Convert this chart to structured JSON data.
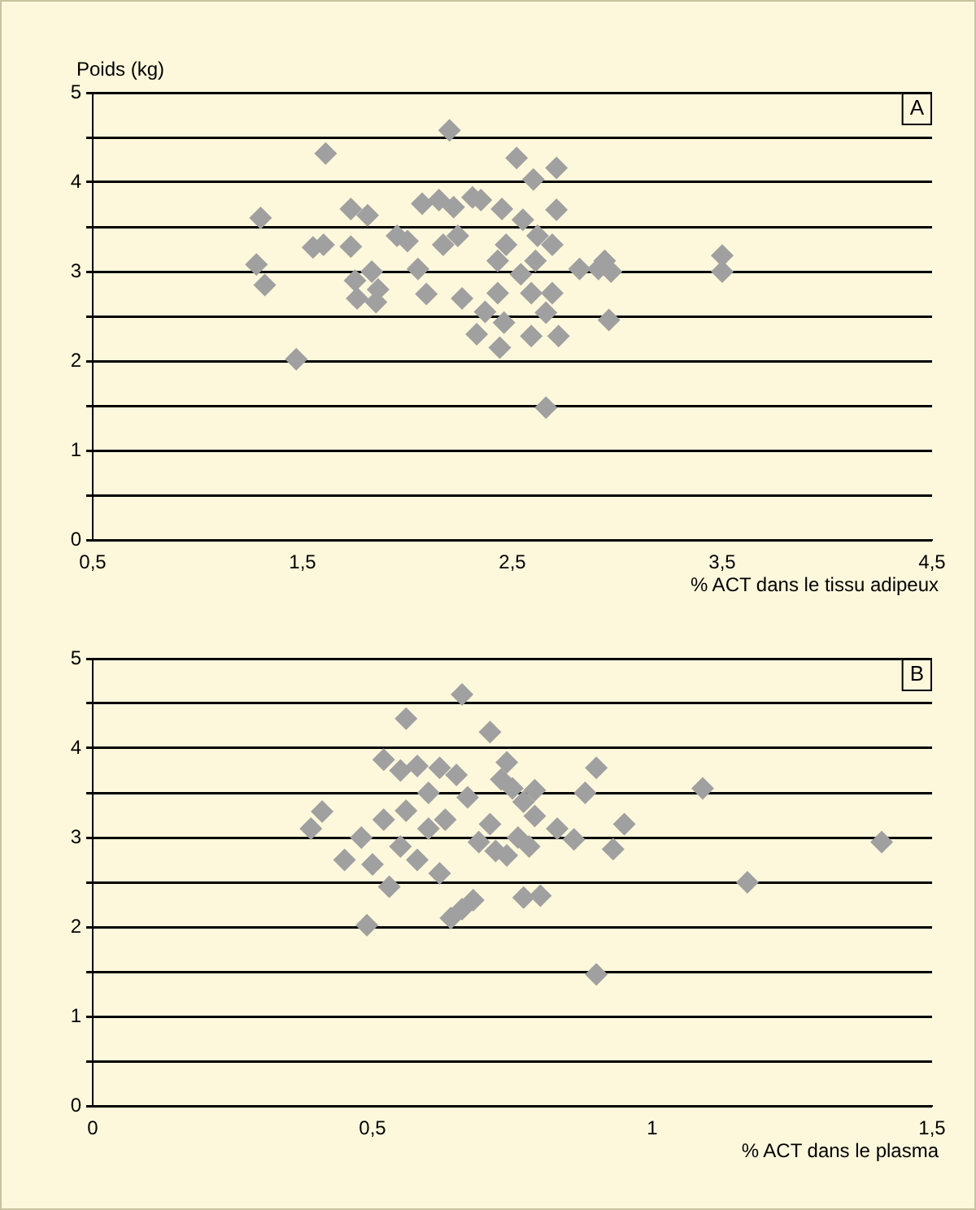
{
  "chart_data": [
    {
      "type": "scatter",
      "ylabel": "Poids (kg)",
      "xlabel": "% ACT dans le tissu adipeux",
      "annotations": [
        "A"
      ],
      "marker": "diamond",
      "grid": "y",
      "xlim": [
        0.5,
        4.5
      ],
      "xticks": [
        {
          "value": 0.5,
          "label": "0,5"
        },
        {
          "value": 1.5,
          "label": "1,5"
        },
        {
          "value": 2.5,
          "label": "2,5"
        },
        {
          "value": 3.5,
          "label": "3,5"
        },
        {
          "value": 4.5,
          "label": "4,5"
        }
      ],
      "ylim": [
        0,
        5
      ],
      "yticks": [
        0,
        {
          "value": 0.5,
          "label": null
        },
        1,
        {
          "value": 1.5,
          "label": null
        },
        2,
        {
          "value": 2.5,
          "label": null
        },
        3,
        {
          "value": 3.5,
          "label": null
        },
        4,
        {
          "value": 4.5,
          "label": null
        },
        5
      ],
      "series": [
        {
          "color": "#a0a0a0",
          "x": [
            1.3,
            1.28,
            1.32,
            1.47,
            1.61,
            1.55,
            1.6,
            1.73,
            1.81,
            1.73,
            1.75,
            1.76,
            1.85,
            1.83,
            1.95,
            2.0,
            1.86,
            2.05,
            2.09,
            2.07,
            2.2,
            2.15,
            2.22,
            2.31,
            2.35,
            2.24,
            2.17,
            2.26,
            2.33,
            2.37,
            2.43,
            2.43,
            2.47,
            2.45,
            2.52,
            2.46,
            2.44,
            2.54,
            2.55,
            2.6,
            2.62,
            2.59,
            2.61,
            2.66,
            2.59,
            2.69,
            2.72,
            2.66,
            2.71,
            2.71,
            2.69,
            2.82,
            2.91,
            2.97,
            2.96,
            2.94,
            3.5,
            3.5
          ],
          "values": [
            3.6,
            3.08,
            2.85,
            2.02,
            4.32,
            3.27,
            3.3,
            3.7,
            3.63,
            3.28,
            2.9,
            2.7,
            2.66,
            3.0,
            3.4,
            3.34,
            2.8,
            3.03,
            2.75,
            3.76,
            4.58,
            3.8,
            3.72,
            3.83,
            3.8,
            3.4,
            3.3,
            2.7,
            2.3,
            2.55,
            2.76,
            3.12,
            3.3,
            3.7,
            4.27,
            2.43,
            2.15,
            2.97,
            3.58,
            4.03,
            3.4,
            2.76,
            3.12,
            2.54,
            2.28,
            2.76,
            2.28,
            1.48,
            3.69,
            4.16,
            3.3,
            3.03,
            3.03,
            3.0,
            2.46,
            3.12,
            3.18,
            3.0
          ]
        }
      ]
    },
    {
      "type": "scatter",
      "xlabel": "% ACT dans le plasma",
      "annotations": [
        "B"
      ],
      "marker": "diamond",
      "grid": "y",
      "xlim": [
        0,
        1.5
      ],
      "xticks": [
        0,
        {
          "value": 0.5,
          "label": "0,5"
        },
        1,
        {
          "value": 1.5,
          "label": "1,5"
        }
      ],
      "ylim": [
        0,
        5
      ],
      "yticks": [
        0,
        {
          "value": 0.5,
          "label": null
        },
        1,
        {
          "value": 1.5,
          "label": null
        },
        2,
        {
          "value": 2.5,
          "label": null
        },
        3,
        {
          "value": 3.5,
          "label": null
        },
        4,
        {
          "value": 4.5,
          "label": null
        },
        5
      ],
      "series": [
        {
          "color": "#a0a0a0",
          "x": [
            0.41,
            0.39,
            0.49,
            0.56,
            0.66,
            0.71,
            0.52,
            0.55,
            0.58,
            0.62,
            0.65,
            0.6,
            0.67,
            0.56,
            0.52,
            0.48,
            0.45,
            0.5,
            0.55,
            0.6,
            0.63,
            0.58,
            0.62,
            0.53,
            0.71,
            0.72,
            0.69,
            0.68,
            0.64,
            0.75,
            0.77,
            0.73,
            0.83,
            0.76,
            0.74,
            0.78,
            0.74,
            0.9,
            0.88,
            1.09,
            0.95,
            0.93,
            0.86,
            0.79,
            0.79,
            0.77,
            0.8,
            0.9,
            1.17,
            1.41,
            0.66
          ],
          "values": [
            3.29,
            3.1,
            2.02,
            4.33,
            4.6,
            4.18,
            3.87,
            3.75,
            3.8,
            3.78,
            3.7,
            3.5,
            3.45,
            3.3,
            3.2,
            3.0,
            2.75,
            2.7,
            2.9,
            3.1,
            3.2,
            2.75,
            2.6,
            2.45,
            3.15,
            2.85,
            2.95,
            2.3,
            2.1,
            3.55,
            3.4,
            3.65,
            3.1,
            3.0,
            2.8,
            2.9,
            3.84,
            3.78,
            3.5,
            3.55,
            3.15,
            2.87,
            2.98,
            3.53,
            3.24,
            2.33,
            2.35,
            1.47,
            2.5,
            2.95,
            2.2
          ]
        }
      ]
    }
  ]
}
